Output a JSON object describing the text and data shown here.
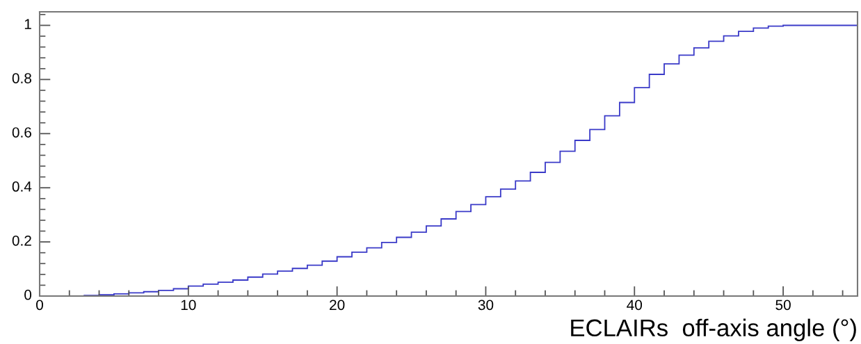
{
  "chart_data": {
    "type": "histogram",
    "xlabel": "ECLAIRs  off-axis angle (°)",
    "bins": [
      2,
      3,
      4,
      5,
      6,
      7,
      8,
      9,
      10,
      11,
      12,
      13,
      14,
      15,
      16,
      17,
      18,
      19,
      20,
      21,
      22,
      23,
      24,
      25,
      26,
      27,
      28,
      29,
      30,
      31,
      32,
      33,
      34,
      35,
      36,
      37,
      38,
      39,
      40,
      41,
      42,
      43,
      44,
      45,
      46,
      47,
      48,
      49,
      50,
      51,
      52,
      53,
      54,
      55
    ],
    "values": [
      0,
      0.002,
      0.005,
      0.008,
      0.012,
      0.016,
      0.021,
      0.027,
      0.037,
      0.044,
      0.051,
      0.059,
      0.07,
      0.081,
      0.092,
      0.102,
      0.114,
      0.129,
      0.145,
      0.162,
      0.178,
      0.198,
      0.217,
      0.236,
      0.259,
      0.285,
      0.312,
      0.338,
      0.367,
      0.395,
      0.425,
      0.457,
      0.494,
      0.535,
      0.575,
      0.615,
      0.666,
      0.715,
      0.77,
      0.819,
      0.858,
      0.89,
      0.917,
      0.941,
      0.961,
      0.978,
      0.99,
      0.997,
      1,
      1,
      1,
      1,
      1
    ],
    "color": "#3a3ac8",
    "xlim": [
      0,
      55
    ],
    "ylim": [
      0,
      1.05
    ],
    "xticks": [
      0,
      {
        "value": 2,
        "label": null
      },
      {
        "value": 4,
        "label": null
      },
      {
        "value": 6,
        "label": null
      },
      {
        "value": 8,
        "label": null
      },
      10,
      {
        "value": 12,
        "label": null
      },
      {
        "value": 14,
        "label": null
      },
      {
        "value": 16,
        "label": null
      },
      {
        "value": 18,
        "label": null
      },
      20,
      {
        "value": 22,
        "label": null
      },
      {
        "value": 24,
        "label": null
      },
      {
        "value": 26,
        "label": null
      },
      {
        "value": 28,
        "label": null
      },
      30,
      {
        "value": 32,
        "label": null
      },
      {
        "value": 34,
        "label": null
      },
      {
        "value": 36,
        "label": null
      },
      {
        "value": 38,
        "label": null
      },
      40,
      {
        "value": 42,
        "label": null
      },
      {
        "value": 44,
        "label": null
      },
      {
        "value": 46,
        "label": null
      },
      {
        "value": 48,
        "label": null
      },
      50,
      {
        "value": 52,
        "label": null
      },
      {
        "value": 54,
        "label": null
      }
    ],
    "yticks": [
      0,
      0.2,
      0.4,
      0.6,
      0.8,
      1
    ],
    "grid": false
  }
}
